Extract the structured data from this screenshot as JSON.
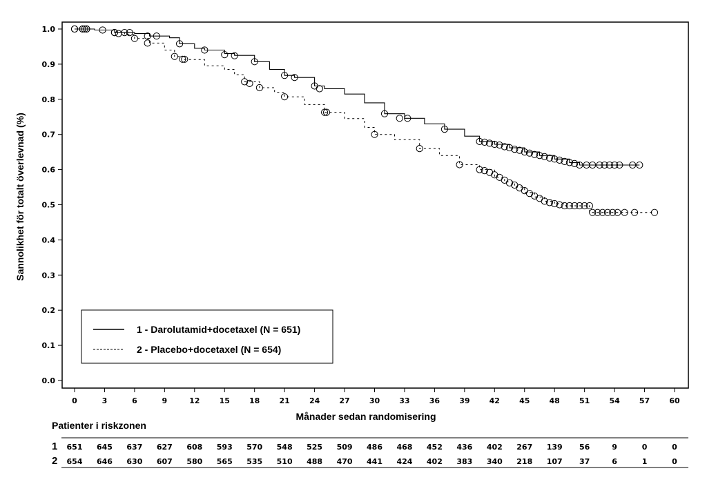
{
  "chart_data": {
    "type": "line",
    "subtype": "kaplan-meier",
    "title": "",
    "xlabel": "Månader sedan randomisering",
    "ylabel": "Sannolikhet för totalt överlevnad (%)",
    "xlim": [
      0,
      60
    ],
    "ylim": [
      0.0,
      1.0
    ],
    "x_ticks": [
      0,
      3,
      6,
      9,
      12,
      15,
      18,
      21,
      24,
      27,
      30,
      33,
      36,
      39,
      42,
      45,
      48,
      51,
      54,
      57,
      60
    ],
    "y_ticks": [
      "0.0",
      "0.1",
      "0.2",
      "0.3",
      "0.4",
      "0.5",
      "0.6",
      "0.7",
      "0.8",
      "0.9",
      "1.0"
    ],
    "grid": false,
    "legend_position": "bottom-left",
    "series": [
      {
        "id": "1",
        "name": "1 - Darolutamid+docetaxel (N = 651)",
        "line_style": "solid",
        "color": "#000000",
        "points": [
          [
            0,
            1.0
          ],
          [
            2,
            0.997
          ],
          [
            4,
            0.99
          ],
          [
            6,
            0.987
          ],
          [
            7.5,
            0.98
          ],
          [
            9.5,
            0.975
          ],
          [
            10.5,
            0.958
          ],
          [
            12,
            0.945
          ],
          [
            13,
            0.94
          ],
          [
            15,
            0.93
          ],
          [
            16,
            0.925
          ],
          [
            18,
            0.907
          ],
          [
            19.5,
            0.885
          ],
          [
            21,
            0.868
          ],
          [
            22,
            0.862
          ],
          [
            24,
            0.838
          ],
          [
            25,
            0.83
          ],
          [
            27,
            0.815
          ],
          [
            29,
            0.79
          ],
          [
            31,
            0.759
          ],
          [
            33,
            0.746
          ],
          [
            35,
            0.73
          ],
          [
            37,
            0.715
          ],
          [
            39,
            0.695
          ],
          [
            40.5,
            0.68
          ],
          [
            42,
            0.672
          ],
          [
            43.5,
            0.662
          ],
          [
            45,
            0.65
          ],
          [
            46.5,
            0.64
          ],
          [
            48,
            0.63
          ],
          [
            49.5,
            0.62
          ],
          [
            50.5,
            0.613
          ],
          [
            56.5,
            0.613
          ]
        ],
        "censored": [
          [
            0,
            1.0
          ],
          [
            0.8,
            1.0
          ],
          [
            1,
            1.0
          ],
          [
            1.2,
            1.0
          ],
          [
            2.8,
            0.997
          ],
          [
            4,
            0.99
          ],
          [
            4.4,
            0.987
          ],
          [
            5,
            0.99
          ],
          [
            5.5,
            0.99
          ],
          [
            7.3,
            0.98
          ],
          [
            8.2,
            0.98
          ],
          [
            10.5,
            0.958
          ],
          [
            13,
            0.94
          ],
          [
            15,
            0.927
          ],
          [
            16,
            0.924
          ],
          [
            18,
            0.907
          ],
          [
            21,
            0.868
          ],
          [
            22,
            0.862
          ],
          [
            24,
            0.838
          ],
          [
            24.5,
            0.83
          ],
          [
            31,
            0.759
          ],
          [
            32.5,
            0.746
          ],
          [
            33.3,
            0.746
          ],
          [
            37,
            0.715
          ],
          [
            40.5,
            0.68
          ],
          [
            41,
            0.678
          ],
          [
            41.5,
            0.675
          ],
          [
            42,
            0.672
          ],
          [
            42.5,
            0.67
          ],
          [
            43,
            0.665
          ],
          [
            43.5,
            0.662
          ],
          [
            44,
            0.658
          ],
          [
            44.5,
            0.655
          ],
          [
            45,
            0.65
          ],
          [
            45.5,
            0.647
          ],
          [
            46,
            0.643
          ],
          [
            46.5,
            0.64
          ],
          [
            47,
            0.637
          ],
          [
            47.5,
            0.633
          ],
          [
            48,
            0.63
          ],
          [
            48.5,
            0.627
          ],
          [
            49,
            0.623
          ],
          [
            49.5,
            0.62
          ],
          [
            50,
            0.617
          ],
          [
            50.5,
            0.613
          ],
          [
            51.2,
            0.613
          ],
          [
            51.8,
            0.613
          ],
          [
            52.5,
            0.613
          ],
          [
            53,
            0.613
          ],
          [
            53.5,
            0.613
          ],
          [
            54,
            0.613
          ],
          [
            54.5,
            0.613
          ],
          [
            55.8,
            0.613
          ],
          [
            56.5,
            0.613
          ]
        ]
      },
      {
        "id": "2",
        "name": "2 - Placebo+docetaxel (N = 654)",
        "line_style": "dashed",
        "color": "#000000",
        "points": [
          [
            0,
            1.0
          ],
          [
            2,
            0.997
          ],
          [
            4,
            0.99
          ],
          [
            5,
            0.985
          ],
          [
            6,
            0.973
          ],
          [
            7.5,
            0.96
          ],
          [
            9,
            0.94
          ],
          [
            10,
            0.922
          ],
          [
            11,
            0.913
          ],
          [
            13,
            0.895
          ],
          [
            15,
            0.885
          ],
          [
            16,
            0.87
          ],
          [
            17,
            0.85
          ],
          [
            18.5,
            0.833
          ],
          [
            20,
            0.82
          ],
          [
            21,
            0.807
          ],
          [
            23,
            0.785
          ],
          [
            25,
            0.763
          ],
          [
            27,
            0.745
          ],
          [
            29,
            0.72
          ],
          [
            30,
            0.7
          ],
          [
            32,
            0.685
          ],
          [
            34.5,
            0.66
          ],
          [
            36.5,
            0.64
          ],
          [
            38.5,
            0.614
          ],
          [
            40.5,
            0.6
          ],
          [
            42,
            0.578
          ],
          [
            43,
            0.565
          ],
          [
            44,
            0.55
          ],
          [
            45,
            0.535
          ],
          [
            46,
            0.522
          ],
          [
            47,
            0.51
          ],
          [
            48,
            0.503
          ],
          [
            49,
            0.497
          ],
          [
            51.5,
            0.497
          ],
          [
            51.5,
            0.478
          ],
          [
            58,
            0.478
          ]
        ],
        "censored": [
          [
            0,
            1.0
          ],
          [
            0.8,
            1.0
          ],
          [
            1.2,
            1.0
          ],
          [
            4,
            0.99
          ],
          [
            6,
            0.973
          ],
          [
            7.3,
            0.96
          ],
          [
            10,
            0.922
          ],
          [
            10.8,
            0.914
          ],
          [
            11,
            0.914
          ],
          [
            17,
            0.85
          ],
          [
            17.5,
            0.845
          ],
          [
            18.5,
            0.833
          ],
          [
            21,
            0.807
          ],
          [
            25,
            0.763
          ],
          [
            25.2,
            0.763
          ],
          [
            30,
            0.7
          ],
          [
            34.5,
            0.66
          ],
          [
            38.5,
            0.614
          ],
          [
            40.5,
            0.6
          ],
          [
            41,
            0.597
          ],
          [
            41.5,
            0.592
          ],
          [
            42,
            0.585
          ],
          [
            42.5,
            0.578
          ],
          [
            43,
            0.57
          ],
          [
            43.5,
            0.562
          ],
          [
            44,
            0.556
          ],
          [
            44.5,
            0.548
          ],
          [
            45,
            0.54
          ],
          [
            45.5,
            0.532
          ],
          [
            46,
            0.525
          ],
          [
            46.5,
            0.518
          ],
          [
            47,
            0.51
          ],
          [
            47.5,
            0.506
          ],
          [
            48,
            0.503
          ],
          [
            48.5,
            0.5
          ],
          [
            49,
            0.497
          ],
          [
            49.5,
            0.497
          ],
          [
            50,
            0.497
          ],
          [
            50.5,
            0.497
          ],
          [
            51,
            0.497
          ],
          [
            51.5,
            0.497
          ],
          [
            51.8,
            0.478
          ],
          [
            52.3,
            0.478
          ],
          [
            52.8,
            0.478
          ],
          [
            53.3,
            0.478
          ],
          [
            53.8,
            0.478
          ],
          [
            54.3,
            0.478
          ],
          [
            55,
            0.478
          ],
          [
            56,
            0.478
          ],
          [
            58,
            0.478
          ]
        ]
      }
    ],
    "legend": [
      {
        "label": "1 - Darolutamid+docetaxel (N = 651)",
        "line_style": "solid"
      },
      {
        "label": "2 - Placebo+docetaxel (N = 654)",
        "line_style": "dashed"
      }
    ],
    "risk_table": {
      "title": "Patienter i riskzonen",
      "rows": [
        {
          "label": "1",
          "values": [
            "651",
            "645",
            "637",
            "627",
            "608",
            "593",
            "570",
            "548",
            "525",
            "509",
            "486",
            "468",
            "452",
            "436",
            "402",
            "267",
            "139",
            "56",
            "9",
            "0",
            "0"
          ]
        },
        {
          "label": "2",
          "values": [
            "654",
            "646",
            "630",
            "607",
            "580",
            "565",
            "535",
            "510",
            "488",
            "470",
            "441",
            "424",
            "402",
            "383",
            "340",
            "218",
            "107",
            "37",
            "6",
            "1",
            "0"
          ]
        }
      ]
    }
  }
}
